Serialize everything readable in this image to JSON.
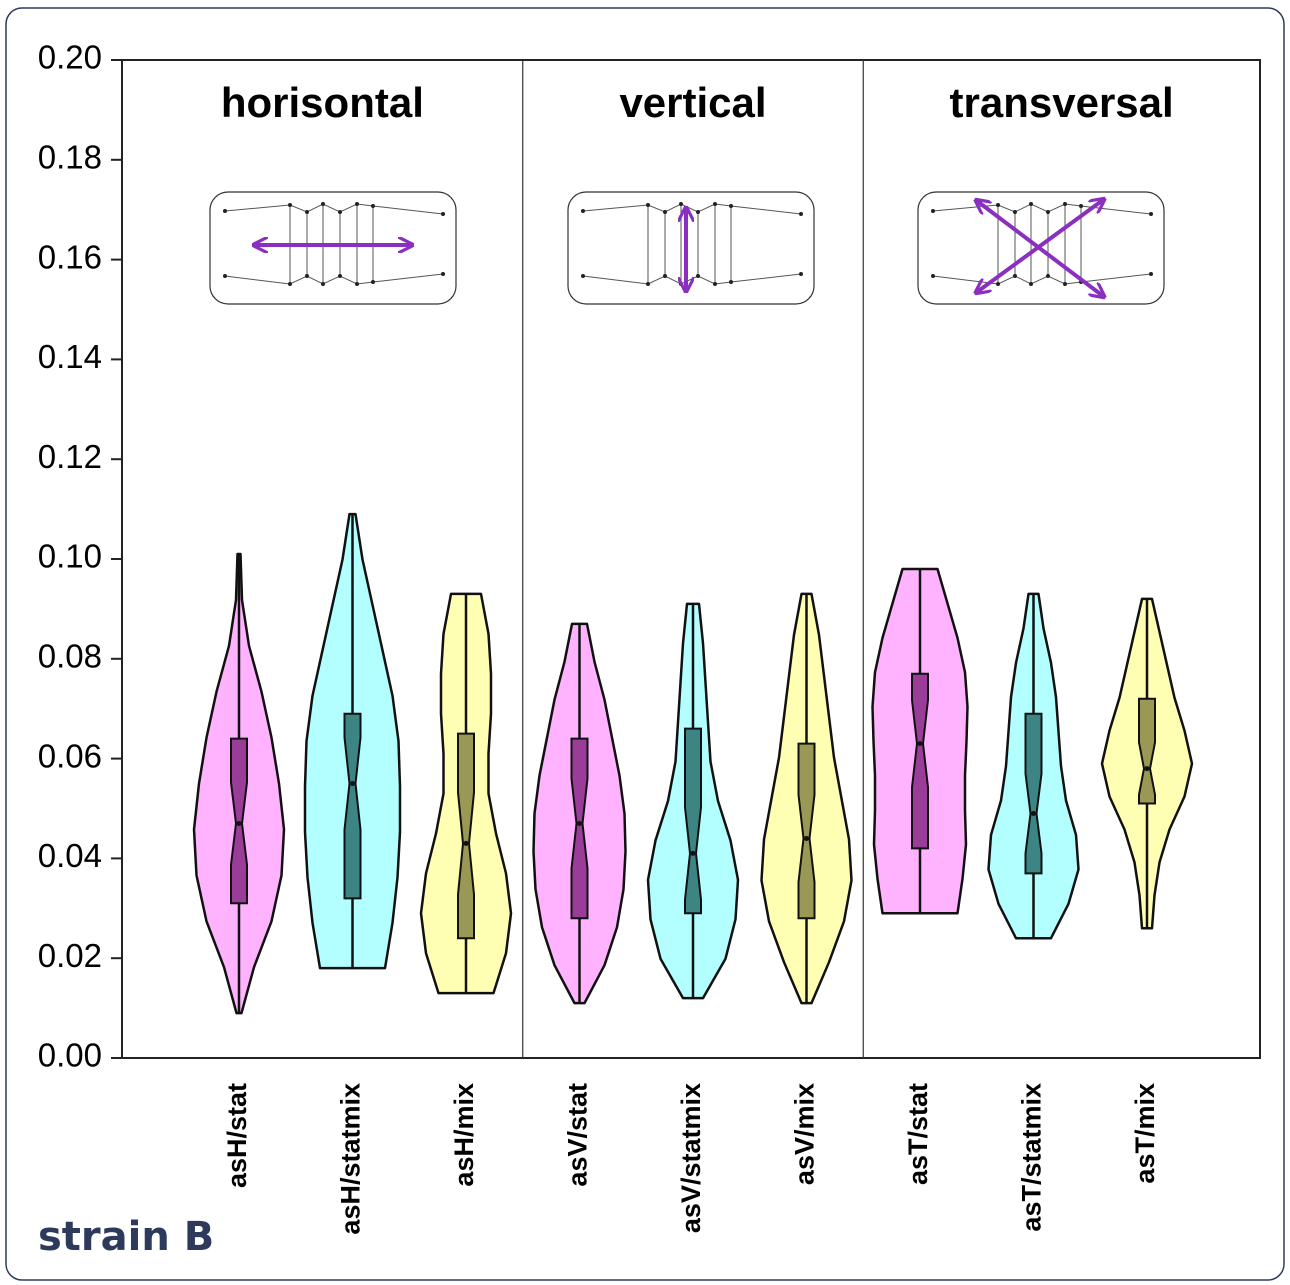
{
  "chart_data": {
    "type": "violin",
    "ylim": [
      0,
      0.2
    ],
    "yticks": [
      {
        "value": 0,
        "label": "0.00"
      },
      {
        "value": 0.02,
        "label": "0.02"
      },
      {
        "value": 0.04,
        "label": "0.04"
      },
      {
        "value": 0.06,
        "label": "0.06"
      },
      {
        "value": 0.08,
        "label": "0.08"
      },
      {
        "value": 0.1,
        "label": "0.10"
      },
      {
        "value": 0.12,
        "label": "0.12"
      },
      {
        "value": 0.14,
        "label": "0.14"
      },
      {
        "value": 0.16,
        "label": "0.16"
      },
      {
        "value": 0.18,
        "label": "0.18"
      },
      {
        "value": 0.2,
        "label": "0.20"
      }
    ],
    "colors": [
      "#ffb3ff",
      "#b3ffff",
      "#ffffb3"
    ],
    "box_colors": [
      "#993d99",
      "#3d8585",
      "#999955"
    ],
    "panels": [
      {
        "title": "horisontal",
        "categories": [
          "asH/stat",
          "asH/statmix",
          "asH/mix"
        ],
        "stats": [
          {
            "min": 0.009,
            "q1": 0.031,
            "median": 0.047,
            "q3": 0.064,
            "max": 0.101,
            "density": [
              0.05,
              0.3,
              0.65,
              0.85,
              0.9,
              0.8,
              0.65,
              0.45,
              0.2,
              0.06,
              0.03
            ]
          },
          {
            "min": 0.018,
            "q1": 0.032,
            "median": 0.055,
            "q3": 0.069,
            "max": 0.109,
            "density": [
              0.65,
              0.8,
              0.9,
              0.95,
              0.95,
              0.92,
              0.8,
              0.6,
              0.4,
              0.2,
              0.06
            ]
          },
          {
            "min": 0.013,
            "q1": 0.024,
            "median": 0.043,
            "q3": 0.065,
            "max": 0.093,
            "density": [
              0.55,
              0.8,
              0.9,
              0.8,
              0.6,
              0.45,
              0.45,
              0.5,
              0.5,
              0.45,
              0.3
            ]
          }
        ]
      },
      {
        "title": "vertical",
        "categories": [
          "asV/stat",
          "asV/statmix",
          "asV/mix"
        ],
        "stats": [
          {
            "min": 0.011,
            "q1": 0.028,
            "median": 0.047,
            "q3": 0.064,
            "max": 0.087,
            "density": [
              0.1,
              0.5,
              0.75,
              0.88,
              0.92,
              0.9,
              0.8,
              0.65,
              0.5,
              0.3,
              0.15
            ]
          },
          {
            "min": 0.012,
            "q1": 0.029,
            "median": 0.041,
            "q3": 0.066,
            "max": 0.091,
            "density": [
              0.2,
              0.65,
              0.85,
              0.9,
              0.75,
              0.5,
              0.35,
              0.3,
              0.25,
              0.2,
              0.12
            ]
          },
          {
            "min": 0.011,
            "q1": 0.028,
            "median": 0.044,
            "q3": 0.063,
            "max": 0.093,
            "density": [
              0.1,
              0.45,
              0.75,
              0.9,
              0.85,
              0.7,
              0.55,
              0.45,
              0.35,
              0.25,
              0.1
            ]
          }
        ]
      },
      {
        "title": "transversal",
        "categories": [
          "asT/stat",
          "asT/statmix",
          "asT/mix"
        ],
        "stats": [
          {
            "min": 0.029,
            "q1": 0.042,
            "median": 0.063,
            "q3": 0.077,
            "max": 0.098,
            "density": [
              0.75,
              0.85,
              0.92,
              0.9,
              0.9,
              0.93,
              0.95,
              0.9,
              0.75,
              0.55,
              0.35
            ]
          },
          {
            "min": 0.024,
            "q1": 0.037,
            "median": 0.049,
            "q3": 0.069,
            "max": 0.093,
            "density": [
              0.35,
              0.7,
              0.9,
              0.85,
              0.65,
              0.55,
              0.5,
              0.45,
              0.35,
              0.2,
              0.1
            ]
          },
          {
            "min": 0.026,
            "q1": 0.051,
            "median": 0.058,
            "q3": 0.072,
            "max": 0.092,
            "density": [
              0.1,
              0.15,
              0.25,
              0.45,
              0.75,
              0.9,
              0.75,
              0.55,
              0.4,
              0.25,
              0.1
            ]
          }
        ]
      }
    ]
  },
  "caption": "strain B"
}
